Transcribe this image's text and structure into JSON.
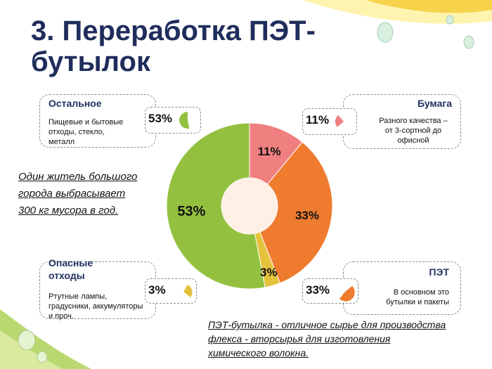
{
  "slide": {
    "title": "3. Переработка ПЭТ-бутылок",
    "note_left": "Один житель большого города выбрасывает 300 кг мусора в год.",
    "note_bottom": "ПЭТ-бутылка - отличное сырье для производства флекса - вторсырья для изготовления химического волокна."
  },
  "categories": {
    "other": {
      "caption": "Остальное",
      "description": "Пищевые и бытовые отходы, стекло, металл",
      "percent_label": "53%"
    },
    "paper": {
      "caption": "Бумага",
      "description": "Разного качества – от 3-сортной до офисной",
      "percent_label": "11%"
    },
    "hazard": {
      "caption": "Опасные отходы",
      "description": "Ртутные лампы, градусники, аккумуляторы и проч.",
      "percent_label": "3%"
    },
    "pet": {
      "caption": "ПЭТ",
      "description": "В основном это бутылки и пакеты",
      "percent_label": "33%"
    }
  },
  "colors": {
    "title": "#1f2d5c",
    "paper": "#f08080",
    "pet": "#ef7b2f",
    "hazard": "#e4c23c",
    "other": "#93c13f",
    "hole": "#fff0e6"
  },
  "chart_data": {
    "type": "pie",
    "categories": [
      "Бумага",
      "ПЭТ",
      "Опасные отходы",
      "Остальное"
    ],
    "values": [
      11,
      33,
      3,
      53
    ],
    "labels": [
      "11%",
      "33%",
      "3%",
      "53%"
    ],
    "colors": [
      "#f08080",
      "#ef7b2f",
      "#e4c23c",
      "#93c13f"
    ],
    "title": ""
  }
}
